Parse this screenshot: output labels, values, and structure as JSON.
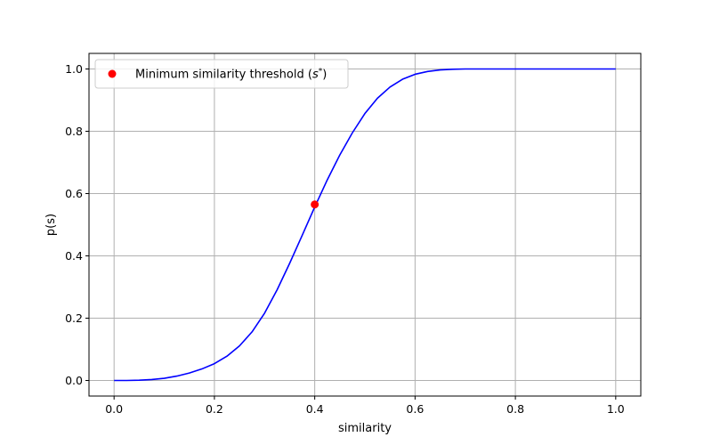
{
  "chart_data": {
    "type": "line",
    "title": "",
    "xlabel": "similarity",
    "ylabel": "p(s)",
    "xlim": [
      -0.05,
      1.05
    ],
    "ylim": [
      -0.05,
      1.05
    ],
    "xticks": [
      0.0,
      0.2,
      0.4,
      0.6,
      0.8,
      1.0
    ],
    "xtick_labels": [
      "0.0",
      "0.2",
      "0.4",
      "0.6",
      "0.8",
      "1.0"
    ],
    "yticks": [
      0.0,
      0.2,
      0.4,
      0.6,
      0.8,
      1.0
    ],
    "ytick_labels": [
      "0.0",
      "0.2",
      "0.4",
      "0.6",
      "0.8",
      "1.0"
    ],
    "grid": true,
    "legend_position": "top-left",
    "series": [
      {
        "type": "line",
        "color": "#0000ff",
        "x": [
          0.0,
          0.025,
          0.05,
          0.075,
          0.1,
          0.125,
          0.15,
          0.175,
          0.2,
          0.225,
          0.25,
          0.275,
          0.3,
          0.325,
          0.35,
          0.375,
          0.4,
          0.425,
          0.45,
          0.475,
          0.5,
          0.525,
          0.55,
          0.575,
          0.6,
          0.625,
          0.65,
          0.675,
          0.7,
          0.75,
          0.8,
          0.85,
          0.9,
          0.95,
          1.0
        ],
        "y": [
          0.0,
          0.0,
          0.001,
          0.003,
          0.007,
          0.014,
          0.024,
          0.037,
          0.054,
          0.078,
          0.111,
          0.156,
          0.216,
          0.291,
          0.376,
          0.466,
          0.557,
          0.644,
          0.724,
          0.795,
          0.857,
          0.906,
          0.942,
          0.967,
          0.983,
          0.992,
          0.997,
          0.999,
          1.0,
          1.0,
          1.0,
          1.0,
          1.0,
          1.0,
          1.0
        ]
      },
      {
        "type": "scatter",
        "name": "Minimum similarity threshold ($s^*$)",
        "color": "#ff0000",
        "x": [
          0.4
        ],
        "y": [
          0.565
        ]
      }
    ]
  },
  "legend": {
    "label_main": "Minimum similarity threshold (",
    "label_var": "s",
    "label_sup": "*",
    "label_close": ")"
  }
}
